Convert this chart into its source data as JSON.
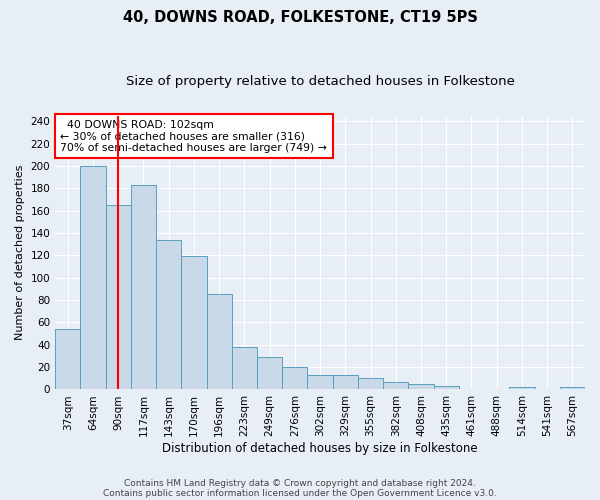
{
  "title": "40, DOWNS ROAD, FOLKESTONE, CT19 5PS",
  "subtitle": "Size of property relative to detached houses in Folkestone",
  "xlabel": "Distribution of detached houses by size in Folkestone",
  "ylabel": "Number of detached properties",
  "categories": [
    "37sqm",
    "64sqm",
    "90sqm",
    "117sqm",
    "143sqm",
    "170sqm",
    "196sqm",
    "223sqm",
    "249sqm",
    "276sqm",
    "302sqm",
    "329sqm",
    "355sqm",
    "382sqm",
    "408sqm",
    "435sqm",
    "461sqm",
    "488sqm",
    "514sqm",
    "541sqm",
    "567sqm"
  ],
  "values": [
    54,
    200,
    165,
    183,
    134,
    119,
    85,
    38,
    29,
    20,
    13,
    13,
    10,
    7,
    5,
    3,
    0,
    0,
    2,
    0,
    2
  ],
  "bar_color": "#c9d9e8",
  "bar_edge_color": "#5a9fc0",
  "property_line_x": 2,
  "property_line_color": "red",
  "annotation_text": "  40 DOWNS ROAD: 102sqm\n← 30% of detached houses are smaller (316)\n70% of semi-detached houses are larger (749) →",
  "annotation_box_color": "white",
  "annotation_box_edge_color": "red",
  "ylim": [
    0,
    245
  ],
  "yticks": [
    0,
    20,
    40,
    60,
    80,
    100,
    120,
    140,
    160,
    180,
    200,
    220,
    240
  ],
  "footer1": "Contains HM Land Registry data © Crown copyright and database right 2024.",
  "footer2": "Contains public sector information licensed under the Open Government Licence v3.0.",
  "bg_color": "#e8eef5",
  "plot_bg_color": "#e8eef5",
  "title_fontsize": 10.5,
  "subtitle_fontsize": 9.5,
  "xlabel_fontsize": 8.5,
  "ylabel_fontsize": 8,
  "tick_fontsize": 7.5,
  "annotation_fontsize": 7.8,
  "footer_fontsize": 6.5
}
